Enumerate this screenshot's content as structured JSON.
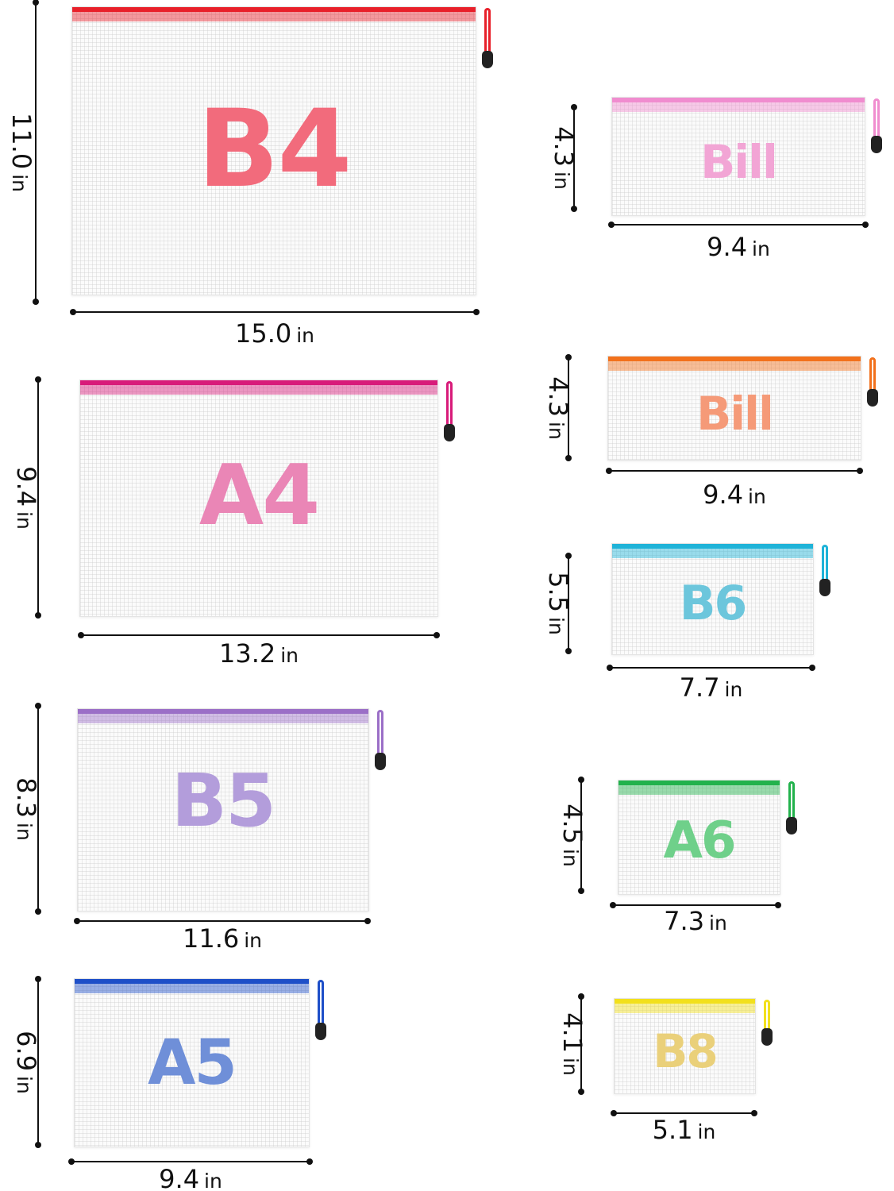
{
  "bags": [
    {
      "label": "B4",
      "height": "11.0",
      "width": "15.0",
      "unit": "in",
      "zipper_color": "#e8202a",
      "label_color": "#f26b7c"
    },
    {
      "label": "A4",
      "height": "9.4",
      "width": "13.2",
      "unit": "in",
      "zipper_color": "#d81b7a",
      "label_color": "#ea86b6"
    },
    {
      "label": "B5",
      "height": "8.3",
      "width": "11.6",
      "unit": "in",
      "zipper_color": "#9b6fc7",
      "label_color": "#b39ddb"
    },
    {
      "label": "A5",
      "height": "6.9",
      "width": "9.4",
      "unit": "in",
      "zipper_color": "#1e4fc8",
      "label_color": "#6f8fd8"
    },
    {
      "label": "Bill",
      "height": "4.3",
      "width": "9.4",
      "unit": "in",
      "zipper_color": "#f08ccf",
      "label_color": "#f2a5d5"
    },
    {
      "label": "Bill",
      "height": "4.3",
      "width": "9.4",
      "unit": "in",
      "zipper_color": "#f2711c",
      "label_color": "#f59a78"
    },
    {
      "label": "B6",
      "height": "5.5",
      "width": "7.7",
      "unit": "in",
      "zipper_color": "#1fb3d8",
      "label_color": "#6cc6dc"
    },
    {
      "label": "A6",
      "height": "4.5",
      "width": "7.3",
      "unit": "in",
      "zipper_color": "#22b24c",
      "label_color": "#6fd08a"
    },
    {
      "label": "B8",
      "height": "4.1",
      "width": "5.1",
      "unit": "in",
      "zipper_color": "#f2e01c",
      "label_color": "#ead07a"
    }
  ]
}
